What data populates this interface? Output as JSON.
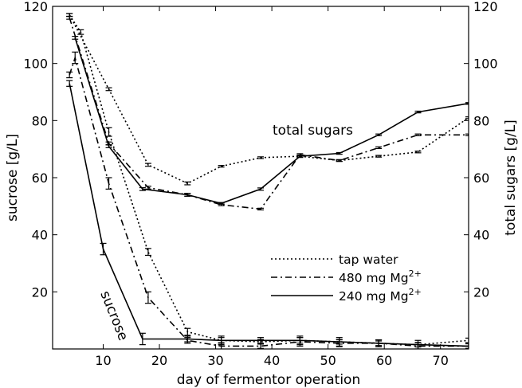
{
  "chart_data": {
    "type": "line",
    "title": "",
    "xlabel": "day of fermentor operation",
    "ylabel_left": "sucrose [g/L]",
    "ylabel_right": "total sugars [g/L]",
    "xlim": [
      1,
      75
    ],
    "ylim": [
      0,
      120
    ],
    "xticks": [
      10,
      20,
      30,
      40,
      50,
      60,
      70
    ],
    "yticks": [
      20,
      40,
      60,
      80,
      100,
      120
    ],
    "grid": false,
    "legend_position": "center-right",
    "annotations": {
      "total": "total sugars",
      "sucrose": "sucrose"
    },
    "series": [
      {
        "name": "tap water",
        "color": "#000000",
        "dash": "dotted",
        "sucrose_x": [
          4,
          6,
          11,
          18,
          25,
          31,
          38,
          45,
          52,
          59,
          66,
          75
        ],
        "sucrose_y": [
          117,
          111,
          76,
          34,
          6,
          3,
          2.5,
          3,
          2.5,
          2,
          1.5,
          3
        ],
        "sucrose_err": [
          0.5,
          0.8,
          1.5,
          1.2,
          1.2,
          1.0,
          0.8,
          1.0,
          0.8,
          0.8,
          0.8,
          0.8
        ],
        "total_x": [
          4,
          11,
          18,
          25,
          31,
          38,
          45,
          52,
          59,
          66,
          75
        ],
        "total_y": [
          117,
          91,
          64.5,
          58,
          64,
          67,
          67.5,
          66,
          67.5,
          69,
          81
        ],
        "total_err": [
          0.5,
          0.5,
          0.5,
          0.5,
          0.3,
          0.3,
          0.4,
          0.3,
          0.3,
          0.3,
          0.3
        ]
      },
      {
        "name": "480 mg Mg2+",
        "color": "#000000",
        "dash": "dashdot",
        "sucrose_x": [
          4,
          5,
          11,
          18,
          25,
          31,
          38,
          45,
          52,
          59,
          66,
          75
        ],
        "sucrose_y": [
          96,
          102,
          58,
          18,
          3,
          1,
          1,
          2.5,
          2,
          2,
          1,
          1
        ],
        "sucrose_err": [
          1,
          2,
          2,
          2,
          1,
          1.2,
          0.8,
          1.5,
          1.2,
          1.2,
          1.2,
          0.8
        ],
        "total_x": [
          4,
          11,
          18,
          25,
          31,
          38,
          45,
          52,
          59,
          66,
          75
        ],
        "total_y": [
          116,
          72,
          56.5,
          54,
          50.5,
          49,
          68,
          66,
          70.5,
          75,
          75
        ],
        "total_err": [
          0.5,
          0.5,
          0.5,
          0.5,
          0.3,
          0.3,
          0.4,
          0.3,
          0.3,
          0.3,
          0.3
        ]
      },
      {
        "name": "240 mg Mg2+",
        "color": "#000000",
        "dash": "solid",
        "sucrose_x": [
          4,
          10,
          17,
          25,
          31,
          38,
          45,
          52,
          59,
          66,
          75
        ],
        "sucrose_y": [
          93,
          35,
          3.5,
          3.5,
          3,
          3,
          3,
          2.5,
          2,
          1.5,
          1
        ],
        "sucrose_err": [
          1,
          2,
          2,
          1,
          1.5,
          1,
          1.5,
          1.5,
          1.2,
          1.5,
          1
        ],
        "total_x": [
          5,
          11,
          17,
          25,
          31,
          38,
          45,
          52,
          59,
          66,
          75
        ],
        "total_y": [
          109,
          71,
          56,
          54,
          51,
          56,
          67.5,
          68.5,
          75,
          83,
          86
        ],
        "total_err": [
          0.5,
          0.5,
          0.5,
          0.5,
          0.3,
          0.4,
          0.4,
          0.3,
          0.3,
          0.3,
          0.3
        ]
      }
    ],
    "legend": [
      {
        "base": "tap water",
        "sup": ""
      },
      {
        "base": "480 mg Mg",
        "sup": "2+"
      },
      {
        "base": "240 mg Mg",
        "sup": "2+"
      }
    ]
  }
}
